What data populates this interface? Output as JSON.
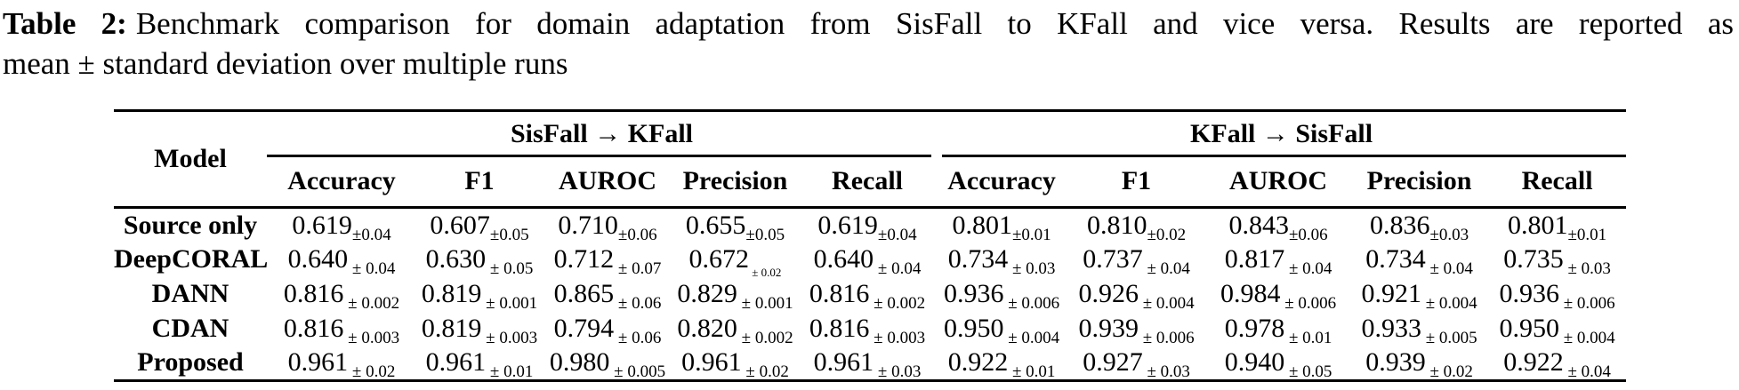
{
  "caption": {
    "label": "Table 2:",
    "line1": "Benchmark comparison for domain adaptation from SisFall to KFall and vice versa. Results are reported as",
    "line2": "mean ± standard deviation over multiple runs"
  },
  "table": {
    "model_header": "Model",
    "groups": [
      {
        "label": "SisFall → KFall"
      },
      {
        "label": "KFall → SisFall"
      }
    ],
    "metrics": [
      "Accuracy",
      "F1",
      "AUROC",
      "Precision",
      "Recall"
    ],
    "rows": [
      {
        "model": "Source only",
        "sisfall_to_kfall": [
          {
            "v": "0.619",
            "s": "±0.04"
          },
          {
            "v": "0.607",
            "s": "±0.05"
          },
          {
            "v": "0.710",
            "s": "±0.06"
          },
          {
            "v": "0.655",
            "s": "±0.05"
          },
          {
            "v": "0.619",
            "s": "±0.04"
          }
        ],
        "kfall_to_sisfall": [
          {
            "v": "0.801",
            "s": "±0.01"
          },
          {
            "v": "0.810",
            "s": "±0.02"
          },
          {
            "v": "0.843",
            "s": "±0.06"
          },
          {
            "v": "0.836",
            "s": "±0.03"
          },
          {
            "v": "0.801",
            "s": "±0.01"
          }
        ]
      },
      {
        "model": "DeepCORAL",
        "sisfall_to_kfall": [
          {
            "v": "0.640",
            "s": " ± 0.04"
          },
          {
            "v": "0.630",
            "s": " ± 0.05"
          },
          {
            "v": "0.712",
            "s": " ± 0.07"
          },
          {
            "v": "0.672",
            "s": " ± 0.02",
            "small": true
          },
          {
            "v": "0.640",
            "s": " ± 0.04"
          }
        ],
        "kfall_to_sisfall": [
          {
            "v": "0.734",
            "s": " ± 0.03"
          },
          {
            "v": "0.737",
            "s": " ± 0.04"
          },
          {
            "v": "0.817",
            "s": " ± 0.04"
          },
          {
            "v": "0.734",
            "s": " ± 0.04"
          },
          {
            "v": "0.735",
            "s": " ± 0.03"
          }
        ]
      },
      {
        "model": "DANN",
        "sisfall_to_kfall": [
          {
            "v": "0.816",
            "s": " ± 0.002"
          },
          {
            "v": "0.819",
            "s": " ± 0.001"
          },
          {
            "v": "0.865",
            "s": " ± 0.06"
          },
          {
            "v": "0.829",
            "s": " ± 0.001"
          },
          {
            "v": "0.816",
            "s": " ± 0.002"
          }
        ],
        "kfall_to_sisfall": [
          {
            "v": "0.936",
            "s": " ± 0.006"
          },
          {
            "v": "0.926",
            "s": " ± 0.004"
          },
          {
            "v": "0.984",
            "s": " ± 0.006"
          },
          {
            "v": "0.921",
            "s": " ± 0.004"
          },
          {
            "v": "0.936",
            "s": " ± 0.006"
          }
        ]
      },
      {
        "model": "CDAN",
        "sisfall_to_kfall": [
          {
            "v": "0.816",
            "s": " ± 0.003"
          },
          {
            "v": "0.819",
            "s": " ± 0.003"
          },
          {
            "v": "0.794",
            "s": " ± 0.06"
          },
          {
            "v": "0.820",
            "s": " ± 0.002"
          },
          {
            "v": "0.816",
            "s": " ± 0.003"
          }
        ],
        "kfall_to_sisfall": [
          {
            "v": "0.950",
            "s": " ± 0.004"
          },
          {
            "v": "0.939",
            "s": " ± 0.006"
          },
          {
            "v": "0.978",
            "s": " ± 0.01"
          },
          {
            "v": "0.933",
            "s": " ± 0.005"
          },
          {
            "v": "0.950",
            "s": " ± 0.004"
          }
        ]
      },
      {
        "model": "Proposed",
        "sisfall_to_kfall": [
          {
            "v": "0.961",
            "s": " ± 0.02"
          },
          {
            "v": "0.961",
            "s": " ± 0.01"
          },
          {
            "v": "0.980",
            "s": " ± 0.005"
          },
          {
            "v": "0.961",
            "s": " ± 0.02"
          },
          {
            "v": "0.961",
            "s": " ± 0.03"
          }
        ],
        "kfall_to_sisfall": [
          {
            "v": "0.922",
            "s": " ± 0.01"
          },
          {
            "v": "0.927",
            "s": " ± 0.03"
          },
          {
            "v": "0.940",
            "s": " ± 0.05"
          },
          {
            "v": "0.939",
            "s": " ± 0.02"
          },
          {
            "v": "0.922",
            "s": " ± 0.04"
          }
        ]
      }
    ]
  },
  "colors": {
    "text": "#000000",
    "background": "#ffffff",
    "rule": "#000000"
  }
}
